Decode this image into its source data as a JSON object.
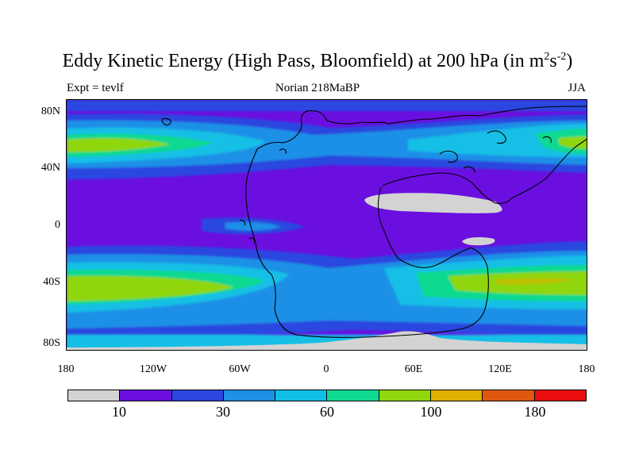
{
  "title": {
    "main": "Eddy Kinetic Energy (High Pass, Bloomfield) at 200 hPa (in m",
    "sup1": "2",
    "mid": "s",
    "sup2": "-2",
    "end": ")"
  },
  "subtitle": {
    "left": "Expt = tevlf",
    "center": "Norian 218MaBP",
    "right": "JJA"
  },
  "map": {
    "region": "global",
    "lat_range": [
      -90,
      90
    ],
    "lon_range": [
      -180,
      180
    ],
    "field": "eddy kinetic energy",
    "missing_color": "#d3d3d3",
    "coastline_color": "#000000"
  },
  "axes": {
    "y_ticks": [
      "80N",
      "40N",
      "0",
      "40S",
      "80S"
    ],
    "x_ticks": [
      "180",
      "120W",
      "60W",
      "0",
      "60E",
      "120E",
      "180"
    ]
  },
  "colorbar": {
    "colors": [
      "#d3d3d3",
      "#6a0fe0",
      "#2c47e0",
      "#1e90e6",
      "#12bfe6",
      "#10d990",
      "#8fd60e",
      "#e0b000",
      "#e0580e",
      "#e80e0e"
    ],
    "labels": [
      "10",
      "30",
      "60",
      "100",
      "180"
    ]
  }
}
